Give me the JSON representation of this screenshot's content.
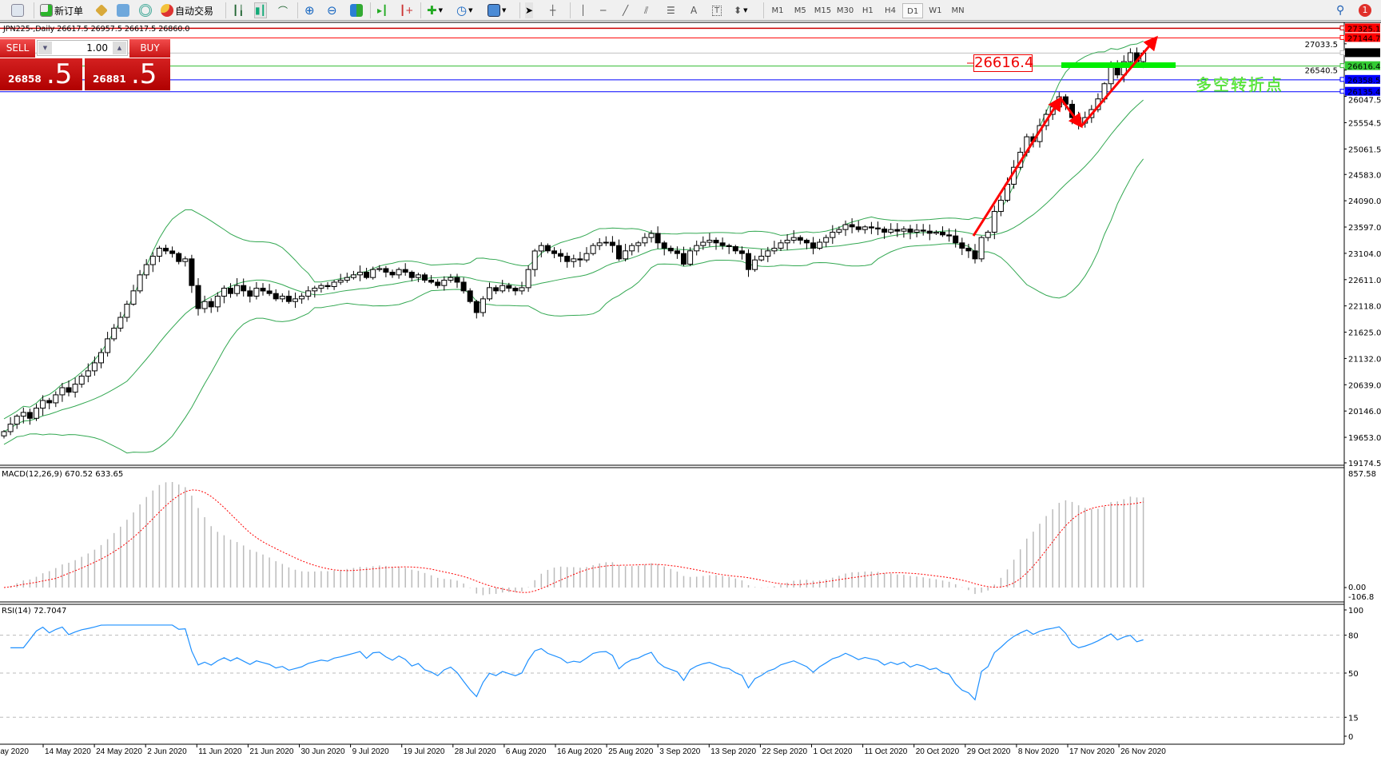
{
  "toolbar": {
    "new_order": "新订单",
    "auto_trading": "自动交易",
    "timeframes": [
      "M1",
      "M5",
      "M15",
      "M30",
      "H1",
      "H4",
      "D1",
      "W1",
      "MN"
    ],
    "active_timeframe": "D1",
    "notification_count": "1"
  },
  "chart_info": "JPN225-,Daily  26617.5 26957.5 26617.5 26860.0",
  "trade_panel": {
    "sell_label": "SELL",
    "buy_label": "BUY",
    "volume": "1.00",
    "sell_price_main": "26858",
    "sell_price_pip": ".5",
    "buy_price_main": "26881",
    "buy_price_pip": ".5"
  },
  "annotations": {
    "level_box": "26616.4",
    "note": "多空转折点"
  },
  "price_axis": {
    "ticks": [
      "26047.5",
      "25554.5",
      "25061.5",
      "24583.0",
      "24090.0",
      "23597.0",
      "23104.0",
      "22611.0",
      "22118.0",
      "21625.0",
      "21132.0",
      "20639.0",
      "20146.0",
      "19653.0",
      "19174.5"
    ],
    "hidden_ticks": [
      "27033.5",
      "26540.5"
    ],
    "levels": [
      {
        "value": "27325.1",
        "color": "#ff0000",
        "line": "#cc0000"
      },
      {
        "value": "27144.7",
        "color": "#ff0000",
        "line": "#ff0000"
      },
      {
        "value": "26860.0",
        "color": "#000000",
        "line": "#c0c0c0"
      },
      {
        "value": "26616.4",
        "color": "#33cc33",
        "line": "#33bb33"
      },
      {
        "value": "26358.5",
        "color": "#0000ff",
        "line": "#0000ff"
      },
      {
        "value": "26135.4",
        "color": "#0000ff",
        "line": "#0000ff"
      }
    ]
  },
  "macd": {
    "label": "MACD(12,26,9) 670.52 633.65",
    "axis": [
      "857.58",
      "0.00",
      "-106.8"
    ]
  },
  "rsi": {
    "label": "RSI(14) 72.7047",
    "axis": [
      "100",
      "80",
      "50",
      "15",
      "0"
    ]
  },
  "time_axis": [
    "May 2020",
    "14 May 2020",
    "24 May 2020",
    "2 Jun 2020",
    "11 Jun 2020",
    "21 Jun 2020",
    "30 Jun 2020",
    "9 Jul 2020",
    "19 Jul 2020",
    "28 Jul 2020",
    "6 Aug 2020",
    "16 Aug 2020",
    "25 Aug 2020",
    "3 Sep 2020",
    "13 Sep 2020",
    "22 Sep 2020",
    "1 Oct 2020",
    "11 Oct 2020",
    "20 Oct 2020",
    "29 Oct 2020",
    "8 Nov 2020",
    "17 Nov 2020",
    "26 Nov 2020"
  ],
  "chart": {
    "symbol": "JPN225-",
    "period": "Daily",
    "bollinger_color": "#33a852",
    "closes": [
      19760,
      19900,
      20050,
      20120,
      20010,
      20200,
      20344,
      20300,
      20450,
      20584,
      20500,
      20650,
      20800,
      20900,
      21050,
      21243,
      21500,
      21700,
      21903,
      22150,
      22400,
      22700,
      22892,
      23050,
      23200,
      23148,
      23100,
      22950,
      23000,
      22500,
      22068,
      22200,
      22100,
      22300,
      22450,
      22350,
      22500,
      22400,
      22300,
      22450,
      22398,
      22350,
      22250,
      22300,
      22200,
      22250,
      22300,
      22400,
      22450,
      22500,
      22480,
      22563,
      22600,
      22650,
      22700,
      22750,
      22650,
      22800,
      22818,
      22750,
      22700,
      22800,
      22750,
      22650,
      22700,
      22600,
      22563,
      22500,
      22600,
      22650,
      22563,
      22400,
      22200,
      21993,
      22250,
      22460,
      22400,
      22500,
      22450,
      22400,
      22460,
      22800,
      23148,
      23250,
      23150,
      23100,
      23050,
      22950,
      23000,
      22980,
      23100,
      23250,
      23300,
      23312,
      23250,
      23000,
      23150,
      23250,
      23300,
      23400,
      23477,
      23300,
      23200,
      23150,
      23100,
      22900,
      23150,
      23250,
      23312,
      23350,
      23300,
      23250,
      23230,
      23150,
      23100,
      22800,
      22980,
      23050,
      23150,
      23200,
      23300,
      23350,
      23400,
      23350,
      23300,
      23200,
      23312,
      23400,
      23500,
      23550,
      23642,
      23600,
      23550,
      23600,
      23580,
      23560,
      23500,
      23550,
      23520,
      23560,
      23500,
      23540,
      23520,
      23480,
      23500,
      23450,
      23430,
      23300,
      23200,
      23150,
      23000,
      23400,
      23500,
      23890,
      24100,
      24400,
      24718,
      25000,
      25290,
      25200,
      25500,
      25710,
      25850,
      26040,
      25900,
      25650,
      25546,
      25650,
      25800,
      26000,
      26285,
      26600,
      26450,
      26700,
      26865,
      26700,
      26860
    ]
  }
}
